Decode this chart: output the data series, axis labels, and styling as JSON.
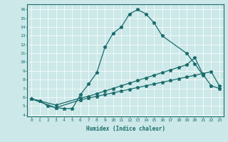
{
  "xlabel": "Humidex (Indice chaleur)",
  "bg_color": "#cce8e8",
  "line_color": "#1a6b6b",
  "grid_color": "#ffffff",
  "xlim": [
    -0.5,
    23.5
  ],
  "ylim": [
    3.8,
    16.6
  ],
  "yticks": [
    4,
    5,
    6,
    7,
    8,
    9,
    10,
    11,
    12,
    13,
    14,
    15,
    16
  ],
  "xticks": [
    0,
    1,
    2,
    3,
    4,
    5,
    6,
    7,
    8,
    9,
    10,
    11,
    12,
    13,
    14,
    15,
    16,
    17,
    18,
    19,
    20,
    21,
    22,
    23
  ],
  "line1_x": [
    0,
    1,
    2,
    3,
    4,
    5,
    6,
    7,
    8,
    9,
    10,
    11,
    12,
    13,
    14,
    15,
    16,
    19,
    20,
    21
  ],
  "line1_y": [
    5.8,
    5.6,
    5.0,
    4.8,
    4.7,
    4.7,
    6.3,
    7.5,
    8.8,
    11.7,
    13.3,
    14.0,
    15.5,
    16.0,
    15.5,
    14.5,
    13.0,
    11.0,
    9.8,
    8.5
  ],
  "line2_x": [
    0,
    3,
    6,
    7,
    8,
    9,
    10,
    11,
    12,
    13,
    14,
    15,
    16,
    17,
    18,
    19,
    20,
    21,
    22,
    23
  ],
  "line2_y": [
    5.8,
    5.1,
    5.9,
    6.1,
    6.4,
    6.7,
    7.0,
    7.3,
    7.6,
    7.9,
    8.2,
    8.5,
    8.8,
    9.1,
    9.4,
    9.7,
    10.5,
    8.6,
    7.3,
    7.0
  ],
  "line3_x": [
    0,
    3,
    6,
    7,
    8,
    9,
    10,
    11,
    12,
    13,
    14,
    15,
    16,
    17,
    18,
    19,
    20,
    21,
    22,
    23
  ],
  "line3_y": [
    5.8,
    4.8,
    5.7,
    5.9,
    6.1,
    6.3,
    6.5,
    6.7,
    6.9,
    7.1,
    7.3,
    7.5,
    7.7,
    7.9,
    8.1,
    8.3,
    8.5,
    8.7,
    8.9,
    7.3
  ]
}
